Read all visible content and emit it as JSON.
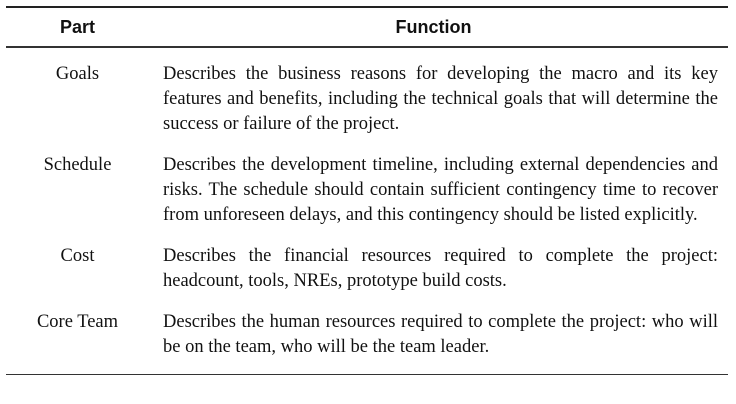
{
  "header": {
    "part": "Part",
    "function": "Function"
  },
  "rows": [
    {
      "part": "Goals",
      "function": "Describes the business reasons for developing the macro and its key features and benefits, including the technical goals that will determine the success or failure of the project."
    },
    {
      "part": "Schedule",
      "function": "Describes the development timeline, including external dependencies and risks. The schedule should contain sufficient contingency time to recover from unforeseen delays, and this contingency should be listed explicitly."
    },
    {
      "part": "Cost",
      "function": "Describes the financial resources required to complete the project: headcount, tools, NREs, prototype build costs."
    },
    {
      "part": "Core Team",
      "function": "Describes the human resources required to complete the project: who will be on the team, who will be the team leader."
    }
  ]
}
